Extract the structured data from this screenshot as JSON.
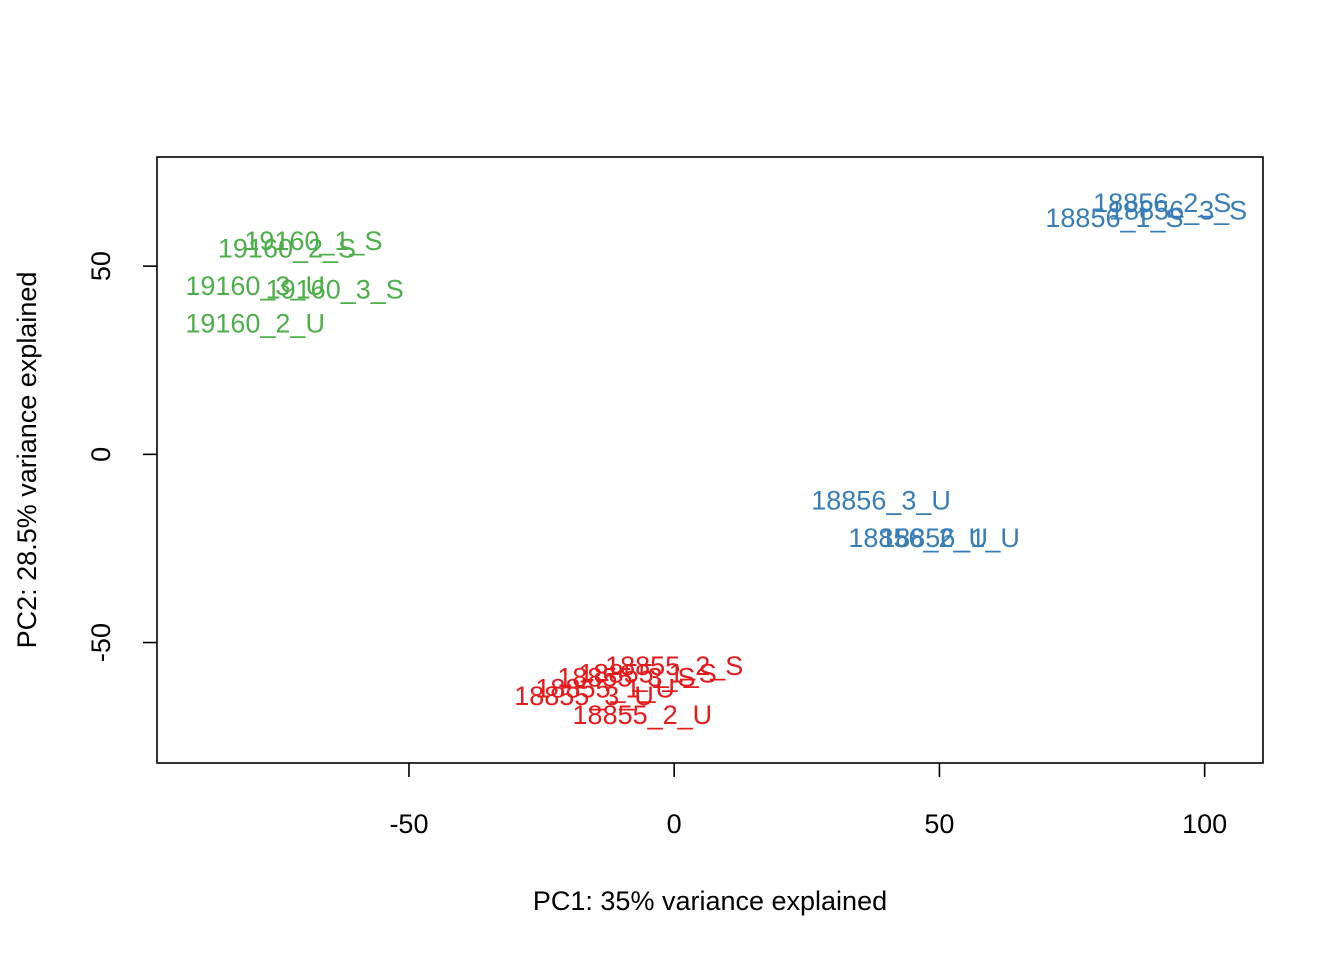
{
  "chart_data": {
    "type": "scatter",
    "title": "",
    "xlabel": "PC1: 35% variance explained",
    "ylabel": "PC2: 28.5% variance explained",
    "xlim": [
      -97.5,
      111
    ],
    "ylim": [
      -82,
      79
    ],
    "xticks": [
      -50,
      0,
      50,
      100
    ],
    "yticks": [
      -50,
      0,
      50
    ],
    "grid": false,
    "legend": "none",
    "marker": "text-labels",
    "colors": {
      "red": "#E41A1C",
      "blue": "#377EB8",
      "green": "#4DAF4A"
    },
    "points": [
      {
        "label": "19160_1_S",
        "x": -68,
        "y": 57,
        "color": "#4DAF4A"
      },
      {
        "label": "19160_2_S",
        "x": -73,
        "y": 55,
        "color": "#4DAF4A"
      },
      {
        "label": "19160_3_U",
        "x": -79,
        "y": 45,
        "color": "#4DAF4A"
      },
      {
        "label": "19160_3_S",
        "x": -64,
        "y": 44,
        "color": "#4DAF4A"
      },
      {
        "label": "19160_2_U",
        "x": -79,
        "y": 35,
        "color": "#4DAF4A"
      },
      {
        "label": "18856_2_S",
        "x": 92,
        "y": 67,
        "color": "#377EB8"
      },
      {
        "label": "18856_3_S",
        "x": 95,
        "y": 65,
        "color": "#377EB8"
      },
      {
        "label": "18856_1_S",
        "x": 83,
        "y": 63,
        "color": "#377EB8"
      },
      {
        "label": "18856_3_U",
        "x": 39,
        "y": -12,
        "color": "#377EB8"
      },
      {
        "label": "18856_2_U",
        "x": 46,
        "y": -22,
        "color": "#377EB8"
      },
      {
        "label": "18856_1_U",
        "x": 52,
        "y": -22,
        "color": "#377EB8"
      },
      {
        "label": "18855_2_S",
        "x": 0,
        "y": -56,
        "color": "#E41A1C"
      },
      {
        "label": "18855_1_S",
        "x": -5,
        "y": -58,
        "color": "#E41A1C"
      },
      {
        "label": "18855_3_S",
        "x": -9,
        "y": -59,
        "color": "#E41A1C"
      },
      {
        "label": "18855_1_U",
        "x": -13,
        "y": -62,
        "color": "#E41A1C"
      },
      {
        "label": "18855_3_U",
        "x": -17,
        "y": -64,
        "color": "#E41A1C"
      },
      {
        "label": "18855_2_U",
        "x": -6,
        "y": -69,
        "color": "#E41A1C"
      }
    ]
  }
}
